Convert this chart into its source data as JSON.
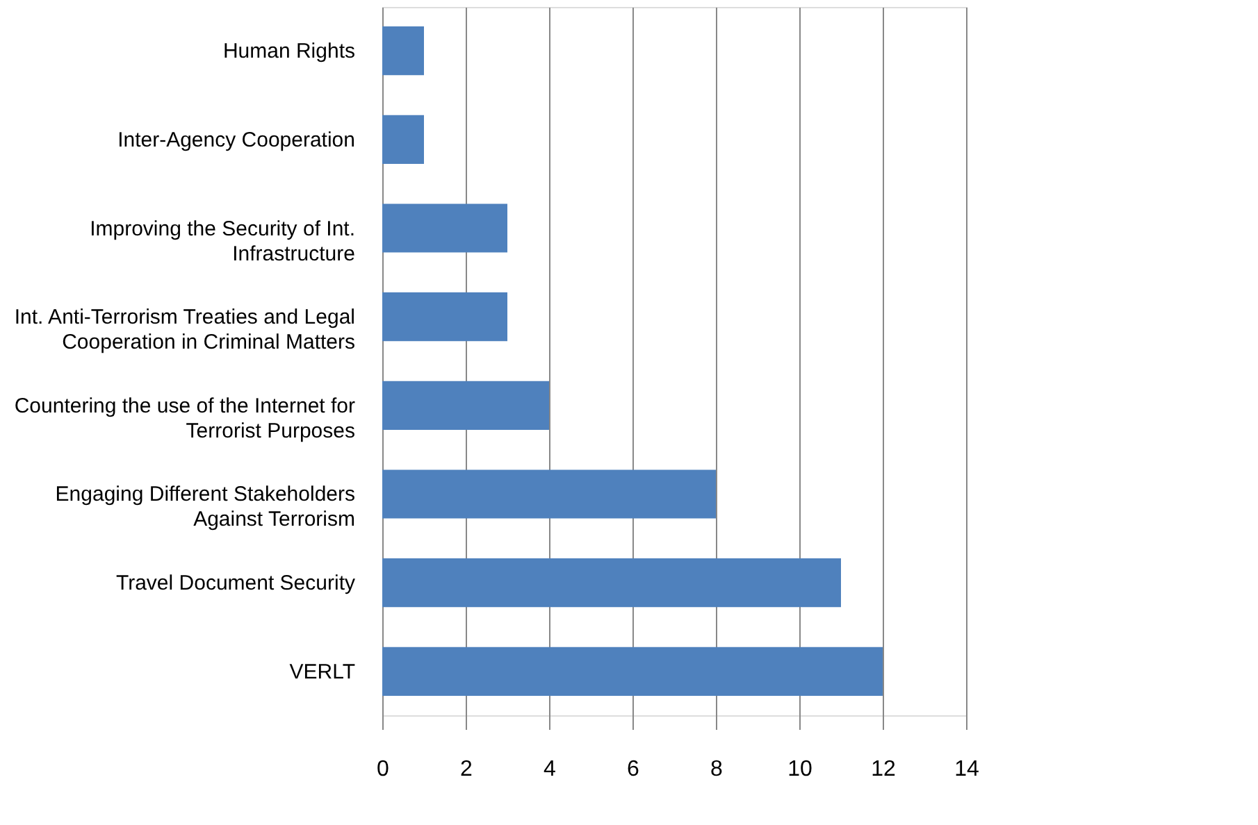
{
  "chart_data": {
    "type": "bar",
    "orientation": "horizontal",
    "categories": [
      "Human Rights",
      "Inter-Agency Cooperation",
      "Improving the Security of Int.\nInfrastructure",
      "Int. Anti-Terrorism Treaties and Legal\nCooperation in Criminal Matters",
      "Countering the use of the  Internet for\nTerrorist Purposes",
      "Engaging Different Stakeholders\nAgainst Terrorism",
      "Travel Document Security",
      "VERLT"
    ],
    "values": [
      1,
      1,
      3,
      3,
      4,
      8,
      11,
      12
    ],
    "color": "#4f81bd",
    "xlim": [
      0,
      14
    ],
    "xticks": [
      0,
      2,
      4,
      6,
      8,
      10,
      12,
      14
    ],
    "grid": "x"
  }
}
